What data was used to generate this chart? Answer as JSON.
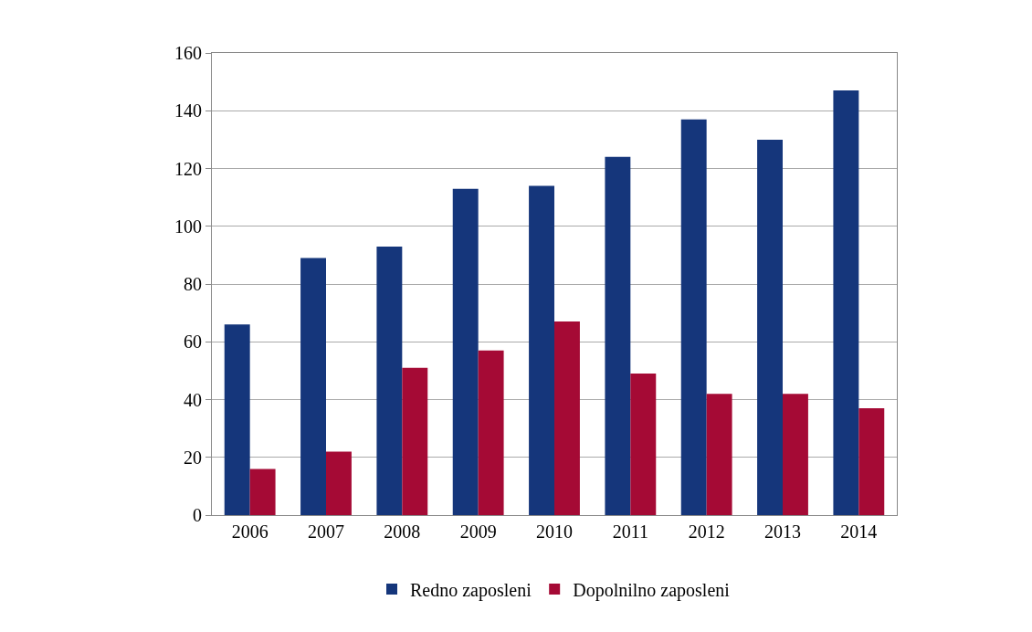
{
  "chart_data": {
    "type": "bar",
    "categories": [
      "2006",
      "2007",
      "2008",
      "2009",
      "2010",
      "2011",
      "2012",
      "2013",
      "2014"
    ],
    "series": [
      {
        "name": "Redno zaposleni",
        "color": "#15367b",
        "values": [
          66,
          89,
          93,
          113,
          114,
          124,
          137,
          130,
          147
        ]
      },
      {
        "name": "Dopolnilno zaposleni",
        "color": "#a50a35",
        "values": [
          16,
          22,
          51,
          57,
          67,
          49,
          42,
          42,
          37
        ]
      }
    ],
    "ylim": [
      0,
      160
    ],
    "yticks": [
      0,
      20,
      40,
      60,
      80,
      100,
      120,
      140,
      160
    ],
    "grid": "y",
    "legend": "bottom"
  }
}
